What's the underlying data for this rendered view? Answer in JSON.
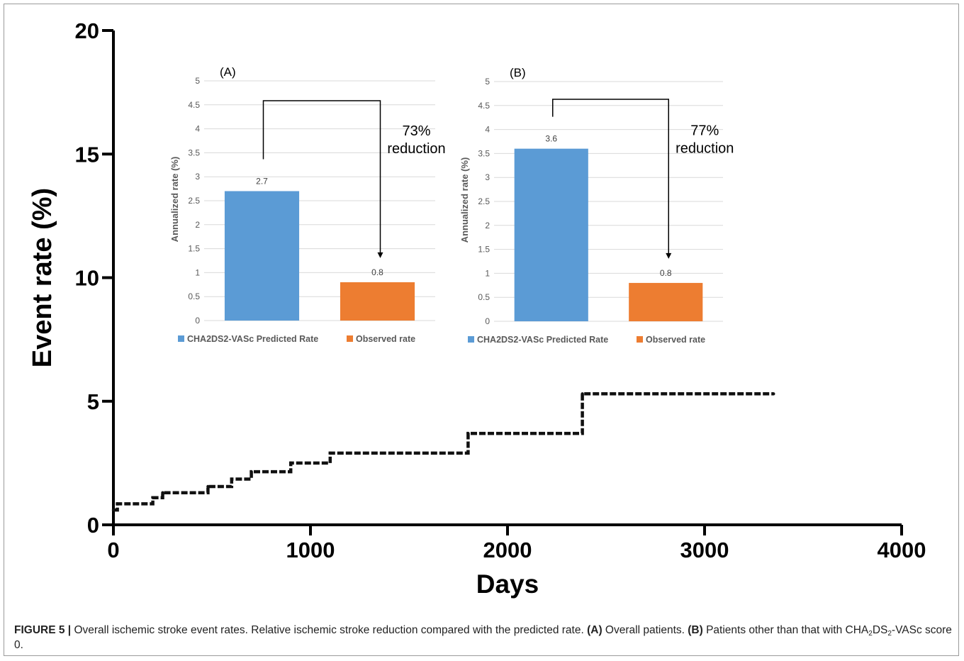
{
  "chart_data": [
    {
      "type": "line",
      "style": "step-dashed",
      "xlabel": "Days",
      "ylabel": "Event rate (%)",
      "xlim": [
        0,
        4000
      ],
      "ylim": [
        0,
        20
      ],
      "xticks": [
        0,
        1000,
        2000,
        3000,
        4000
      ],
      "yticks": [
        0,
        5,
        10,
        15,
        20
      ],
      "grid": false,
      "series": [
        {
          "x": [
            0,
            20,
            200,
            250,
            480,
            600,
            700,
            900,
            1100,
            1800,
            2380,
            3350
          ],
          "y": [
            0.6,
            0.85,
            1.1,
            1.3,
            1.55,
            1.85,
            2.15,
            2.5,
            2.9,
            3.7,
            5.3,
            5.3
          ]
        }
      ]
    },
    {
      "type": "bar",
      "panel_label": "(A)",
      "ylabel": "Annualized rate (%)",
      "ylim": [
        0,
        5
      ],
      "yticks": [
        "0",
        "0.5",
        "1",
        "1.5",
        "2",
        "2.5",
        "3",
        "3.5",
        "4",
        "4.5",
        "5"
      ],
      "grid": true,
      "legend_position": "bottom",
      "categories": [
        "CHA2DS2-VASc Predicted Rate",
        "Observed rate"
      ],
      "values": [
        2.7,
        0.8
      ],
      "data_labels": [
        "2.7",
        "0.8"
      ],
      "colors": [
        "#5b9bd5",
        "#ed7d31"
      ],
      "annotation_percent": "73%",
      "annotation_word": "reduction"
    },
    {
      "type": "bar",
      "panel_label": "(B)",
      "ylabel": "Annualized rate (%)",
      "ylim": [
        0,
        5
      ],
      "yticks": [
        "0",
        "0.5",
        "1",
        "1.5",
        "2",
        "2.5",
        "3",
        "3.5",
        "4",
        "4.5",
        "5"
      ],
      "grid": true,
      "legend_position": "bottom",
      "categories": [
        "CHA2DS2-VASc Predicted Rate",
        "Observed rate"
      ],
      "values": [
        3.6,
        0.8
      ],
      "data_labels": [
        "3.6",
        "0.8"
      ],
      "colors": [
        "#5b9bd5",
        "#ed7d31"
      ],
      "annotation_percent": "77%",
      "annotation_word": "reduction"
    }
  ],
  "caption": {
    "label": "FIGURE 5 |",
    "text1": " Overall ischemic stroke event rates. Relative ischemic stroke reduction compared with the predicted rate. ",
    "bold_a": "(A)",
    "text2": " Overall patients. ",
    "bold_b": "(B)",
    "text3": " Patients other than that with CHA",
    "sub1": "2",
    "text4": "DS",
    "sub2": "2",
    "text5": "-VASc score 0."
  }
}
